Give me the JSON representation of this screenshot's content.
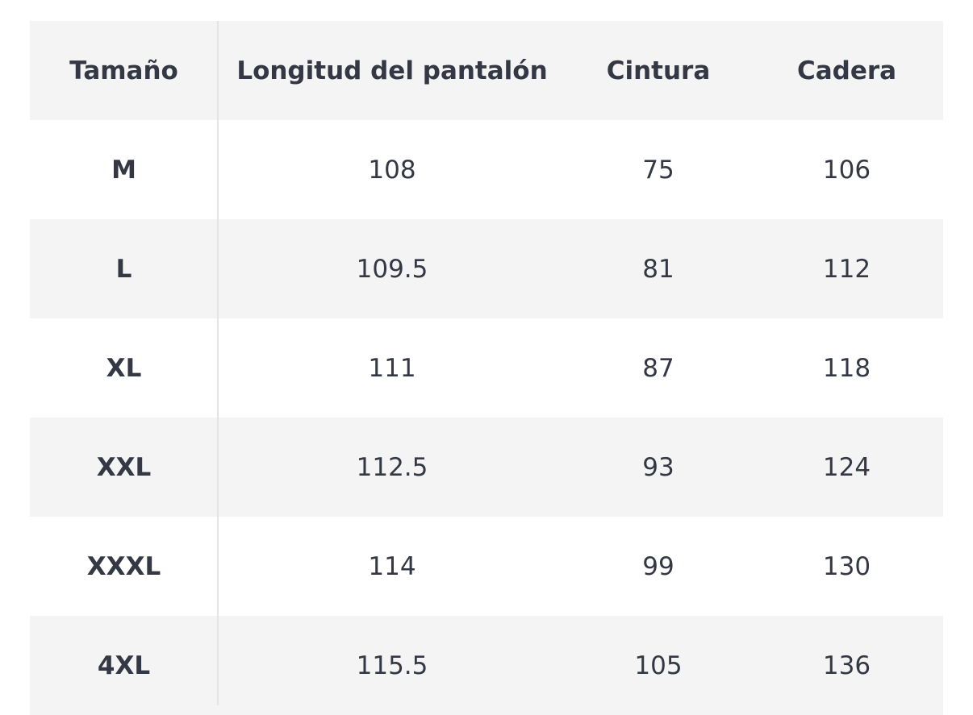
{
  "table": {
    "header": [
      "Tamaño",
      "Longitud del pantalón",
      "Cintura",
      "Cadera"
    ],
    "rows": [
      [
        "M",
        108,
        75,
        106
      ],
      [
        "L",
        109.5,
        81,
        112
      ],
      [
        "XL",
        111,
        87,
        118
      ],
      [
        "XXL",
        112.5,
        93,
        124
      ],
      [
        "XXXL",
        114,
        99,
        130
      ],
      [
        "4XL",
        115.5,
        105,
        136
      ]
    ]
  }
}
